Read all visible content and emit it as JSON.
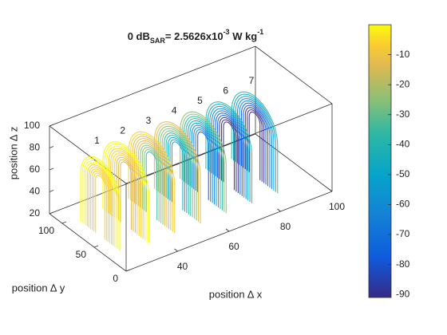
{
  "chart_data": {
    "type": "contour-slice",
    "title": {
      "prefix": "0 dB",
      "subscript": "SAR",
      "middle": "= 2.5626x10",
      "exponent1": "-3",
      "unit": " W kg",
      "exponent2": "-1"
    },
    "xlabel": "position ∆ x",
    "ylabel": "position ∆ y",
    "zlabel": "position ∆ z",
    "slice_labels": [
      "1",
      "2",
      "3",
      "4",
      "5",
      "6",
      "7"
    ],
    "xlim": [
      20,
      100
    ],
    "xticks": [
      40,
      60,
      80,
      100
    ],
    "ylim": [
      0,
      120
    ],
    "yticks": [
      0,
      50,
      100
    ],
    "zlim": [
      20,
      100
    ],
    "zticks": [
      20,
      40,
      60,
      80,
      100
    ],
    "colorbar": {
      "clim": [
        -91,
        0
      ],
      "ticks": [
        -90,
        -80,
        -70,
        -60,
        -50,
        -40,
        -30,
        -20,
        -10
      ]
    }
  }
}
